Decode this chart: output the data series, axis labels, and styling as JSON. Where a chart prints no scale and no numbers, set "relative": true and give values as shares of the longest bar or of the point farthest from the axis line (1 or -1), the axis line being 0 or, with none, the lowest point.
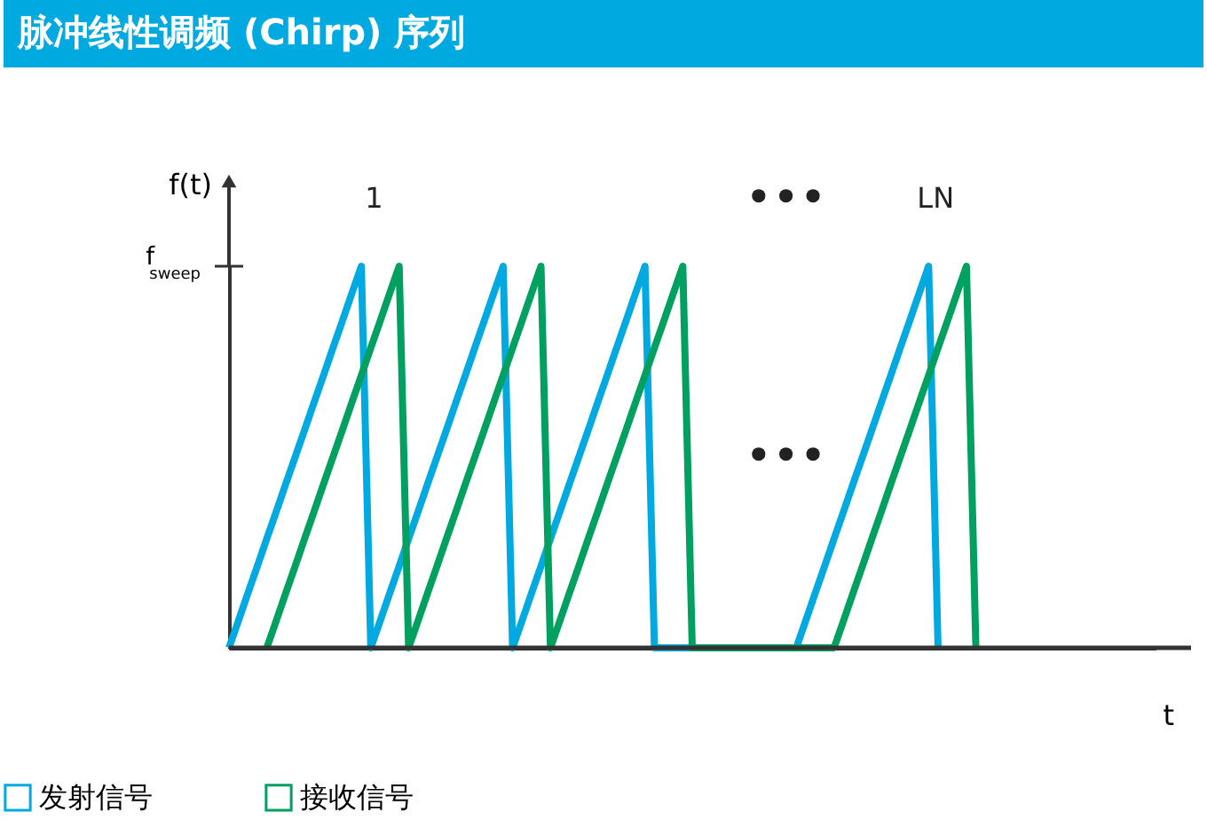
{
  "chart_data": {
    "type": "line",
    "title": "脉冲线性调频 (Chirp) 序列",
    "ylabel": "f(t)",
    "xlabel": "t",
    "relative": true,
    "categories": [
      null,
      null,
      null,
      null,
      null,
      null,
      null,
      null,
      null,
      null,
      null,
      null,
      null,
      null,
      null,
      null,
      null,
      null,
      null,
      null,
      null,
      null,
      null,
      null,
      null,
      null,
      null,
      null,
      null,
      null,
      null,
      null,
      null,
      null,
      null,
      null,
      null,
      null,
      null,
      null,
      null,
      null,
      null,
      null,
      null,
      null,
      null,
      null,
      null,
      null,
      null,
      null,
      null,
      null,
      null,
      null,
      null,
      null,
      null,
      null,
      null,
      null,
      null,
      null,
      null,
      null,
      null,
      null,
      null,
      null,
      null,
      null,
      null,
      null,
      null,
      null,
      null,
      null,
      null,
      null,
      null,
      null,
      null,
      null,
      null,
      null,
      null,
      null,
      null,
      null,
      null,
      null,
      null,
      null,
      null,
      null,
      null,
      null,
      null
    ],
    "series": [
      {
        "name": "发射信号",
        "color": "#00a9e0",
        "values": [
          0,
          0.071,
          0.143,
          0.214,
          0.286,
          0.357,
          0.429,
          0.5,
          0.571,
          0.643,
          0.714,
          0.786,
          0.857,
          0.929,
          1,
          0,
          0.071,
          0.143,
          0.214,
          0.286,
          0.357,
          0.429,
          0.5,
          0.571,
          0.643,
          0.714,
          0.786,
          0.857,
          0.929,
          1,
          0,
          0.071,
          0.143,
          0.214,
          0.286,
          0.357,
          0.429,
          0.5,
          0.571,
          0.643,
          0.714,
          0.786,
          0.857,
          0.929,
          1,
          0,
          0,
          0,
          0,
          0,
          0,
          0,
          0,
          0,
          0,
          0,
          0,
          0,
          0,
          0,
          0,
          0.071,
          0.143,
          0.214,
          0.286,
          0.357,
          0.429,
          0.5,
          0.571,
          0.643,
          0.714,
          0.786,
          0.857,
          0.929,
          1,
          0,
          null,
          null,
          null,
          null,
          null,
          null,
          null,
          null,
          null,
          null,
          null,
          null,
          null,
          null,
          null,
          null,
          null,
          null,
          null,
          null,
          null,
          null,
          null
        ]
      },
      {
        "name": "接收信号",
        "color": "#00a060",
        "values": [
          null,
          null,
          null,
          null,
          0,
          0.071,
          0.143,
          0.214,
          0.286,
          0.357,
          0.429,
          0.5,
          0.571,
          0.643,
          0.714,
          0.786,
          0.857,
          0.929,
          1,
          0,
          0.071,
          0.143,
          0.214,
          0.286,
          0.357,
          0.429,
          0.5,
          0.571,
          0.643,
          0.714,
          0.786,
          0.857,
          0.929,
          1,
          0,
          0.071,
          0.143,
          0.214,
          0.286,
          0.357,
          0.429,
          0.5,
          0.571,
          0.643,
          0.714,
          0.786,
          0.857,
          0.929,
          1,
          0,
          0,
          0,
          0,
          0,
          0,
          0,
          0,
          0,
          0,
          0,
          0,
          0,
          0,
          0,
          0,
          0.071,
          0.143,
          0.214,
          0.286,
          0.357,
          0.429,
          0.5,
          0.571,
          0.643,
          0.714,
          0.786,
          0.857,
          0.929,
          1,
          0,
          null,
          null,
          null,
          null,
          null,
          null,
          null,
          null,
          null,
          null,
          null,
          null,
          null,
          null,
          null,
          null,
          null,
          null,
          null
        ]
      }
    ],
    "annotations": [
      "f$_{sweep}$",
      "1",
      "•••",
      "LN",
      "•••"
    ],
    "legend": "bottom",
    "grid": false,
    "marker": "none",
    "line_style": "solid"
  }
}
